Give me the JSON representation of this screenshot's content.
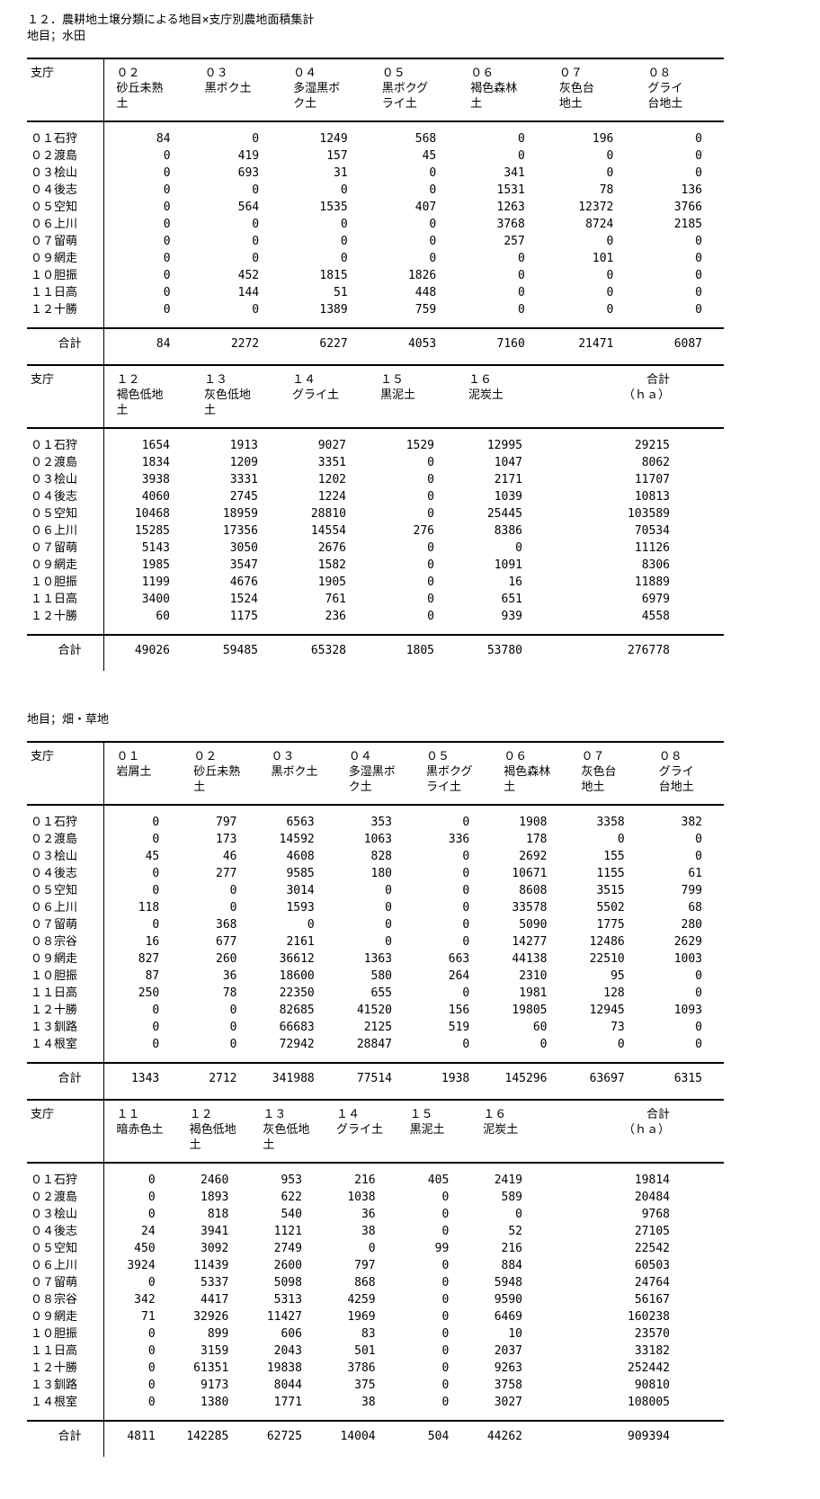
{
  "title": "１２．農耕地土壌分類による地目×支庁別農地面積集計",
  "sections": [
    {
      "label": "地目；水田"
    },
    {
      "label": "地目；畑・草地"
    }
  ],
  "tables": [
    {
      "section": "水田",
      "row_header": "支庁",
      "total_label": "合計",
      "sum_last": false,
      "columns": [
        "０２\n砂丘未熟\n土",
        "０３\n黒ボク土",
        "０４\n多湿黒ボ\nク土",
        "０５\n黒ボクグ\nライ土",
        "０６\n褐色森林\n土",
        "０７\n灰色台\n地土",
        "０８\nグライ\n台地土"
      ],
      "rows": [
        {
          "label": "０１石狩",
          "values": [
            "84",
            "0",
            "1249",
            "568",
            "0",
            "196",
            "0"
          ]
        },
        {
          "label": "０２渡島",
          "values": [
            "0",
            "419",
            "157",
            "45",
            "0",
            "0",
            "0"
          ]
        },
        {
          "label": "０３桧山",
          "values": [
            "0",
            "693",
            "31",
            "0",
            "341",
            "0",
            "0"
          ]
        },
        {
          "label": "０４後志",
          "values": [
            "0",
            "0",
            "0",
            "0",
            "1531",
            "78",
            "136"
          ]
        },
        {
          "label": "０５空知",
          "values": [
            "0",
            "564",
            "1535",
            "407",
            "1263",
            "12372",
            "3766"
          ]
        },
        {
          "label": "０６上川",
          "values": [
            "0",
            "0",
            "0",
            "0",
            "3768",
            "8724",
            "2185"
          ]
        },
        {
          "label": "０７留萌",
          "values": [
            "0",
            "0",
            "0",
            "0",
            "257",
            "0",
            "0"
          ]
        },
        {
          "label": "０９網走",
          "values": [
            "0",
            "0",
            "0",
            "0",
            "0",
            "101",
            "0"
          ]
        },
        {
          "label": "１０胆振",
          "values": [
            "0",
            "452",
            "1815",
            "1826",
            "0",
            "0",
            "0"
          ]
        },
        {
          "label": "１１日高",
          "values": [
            "0",
            "144",
            "51",
            "448",
            "0",
            "0",
            "0"
          ]
        },
        {
          "label": "１２十勝",
          "values": [
            "0",
            "0",
            "1389",
            "759",
            "0",
            "0",
            "0"
          ]
        }
      ],
      "totals": [
        "84",
        "2272",
        "6227",
        "4053",
        "7160",
        "21471",
        "6087"
      ]
    },
    {
      "section": "水田",
      "row_header": "支庁",
      "total_label": "合計",
      "sum_last": true,
      "columns": [
        "１２\n褐色低地\n土",
        "１３\n灰色低地\n土",
        "１４\nグライ土",
        "１５\n黒泥土",
        "１６\n泥炭土",
        "合計\n（ｈａ）"
      ],
      "rows": [
        {
          "label": "０１石狩",
          "values": [
            "1654",
            "1913",
            "9027",
            "1529",
            "12995",
            "29215"
          ]
        },
        {
          "label": "０２渡島",
          "values": [
            "1834",
            "1209",
            "3351",
            "0",
            "1047",
            "8062"
          ]
        },
        {
          "label": "０３桧山",
          "values": [
            "3938",
            "3331",
            "1202",
            "0",
            "2171",
            "11707"
          ]
        },
        {
          "label": "０４後志",
          "values": [
            "4060",
            "2745",
            "1224",
            "0",
            "1039",
            "10813"
          ]
        },
        {
          "label": "０５空知",
          "values": [
            "10468",
            "18959",
            "28810",
            "0",
            "25445",
            "103589"
          ]
        },
        {
          "label": "０６上川",
          "values": [
            "15285",
            "17356",
            "14554",
            "276",
            "8386",
            "70534"
          ]
        },
        {
          "label": "０７留萌",
          "values": [
            "5143",
            "3050",
            "2676",
            "0",
            "0",
            "11126"
          ]
        },
        {
          "label": "０９網走",
          "values": [
            "1985",
            "3547",
            "1582",
            "0",
            "1091",
            "8306"
          ]
        },
        {
          "label": "１０胆振",
          "values": [
            "1199",
            "4676",
            "1905",
            "0",
            "16",
            "11889"
          ]
        },
        {
          "label": "１１日高",
          "values": [
            "3400",
            "1524",
            "761",
            "0",
            "651",
            "6979"
          ]
        },
        {
          "label": "１２十勝",
          "values": [
            "60",
            "1175",
            "236",
            "0",
            "939",
            "4558"
          ]
        }
      ],
      "totals": [
        "49026",
        "59485",
        "65328",
        "1805",
        "53780",
        "276778"
      ]
    },
    {
      "section": "畑・草地",
      "row_header": "支庁",
      "total_label": "合計",
      "sum_last": false,
      "columns": [
        "０１\n岩屑土",
        "０２\n砂丘未熟\n土",
        "０３\n黒ボク土",
        "０４\n多湿黒ボ\nク土",
        "０５\n黒ボクグ\nライ土",
        "０６\n褐色森林\n土",
        "０７\n灰色台\n地土",
        "０８\nグライ\n台地土"
      ],
      "rows": [
        {
          "label": "０１石狩",
          "values": [
            "0",
            "797",
            "6563",
            "353",
            "0",
            "1908",
            "3358",
            "382"
          ]
        },
        {
          "label": "０２渡島",
          "values": [
            "0",
            "173",
            "14592",
            "1063",
            "336",
            "178",
            "0",
            "0"
          ]
        },
        {
          "label": "０３桧山",
          "values": [
            "45",
            "46",
            "4608",
            "828",
            "0",
            "2692",
            "155",
            "0"
          ]
        },
        {
          "label": "０４後志",
          "values": [
            "0",
            "277",
            "9585",
            "180",
            "0",
            "10671",
            "1155",
            "61"
          ]
        },
        {
          "label": "０５空知",
          "values": [
            "0",
            "0",
            "3014",
            "0",
            "0",
            "8608",
            "3515",
            "799"
          ]
        },
        {
          "label": "０６上川",
          "values": [
            "118",
            "0",
            "1593",
            "0",
            "0",
            "33578",
            "5502",
            "68"
          ]
        },
        {
          "label": "０７留萌",
          "values": [
            "0",
            "368",
            "0",
            "0",
            "0",
            "5090",
            "1775",
            "280"
          ]
        },
        {
          "label": "０８宗谷",
          "values": [
            "16",
            "677",
            "2161",
            "0",
            "0",
            "14277",
            "12486",
            "2629"
          ]
        },
        {
          "label": "０９網走",
          "values": [
            "827",
            "260",
            "36612",
            "1363",
            "663",
            "44138",
            "22510",
            "1003"
          ]
        },
        {
          "label": "１０胆振",
          "values": [
            "87",
            "36",
            "18600",
            "580",
            "264",
            "2310",
            "95",
            "0"
          ]
        },
        {
          "label": "１１日高",
          "values": [
            "250",
            "78",
            "22350",
            "655",
            "0",
            "1981",
            "128",
            "0"
          ]
        },
        {
          "label": "１２十勝",
          "values": [
            "0",
            "0",
            "82685",
            "41520",
            "156",
            "19805",
            "12945",
            "1093"
          ]
        },
        {
          "label": "１３釧路",
          "values": [
            "0",
            "0",
            "66683",
            "2125",
            "519",
            "60",
            "73",
            "0"
          ]
        },
        {
          "label": "１４根室",
          "values": [
            "0",
            "0",
            "72942",
            "28847",
            "0",
            "0",
            "0",
            "0"
          ]
        }
      ],
      "totals": [
        "1343",
        "2712",
        "341988",
        "77514",
        "1938",
        "145296",
        "63697",
        "6315"
      ]
    },
    {
      "section": "畑・草地",
      "row_header": "支庁",
      "total_label": "合計",
      "sum_last": true,
      "columns": [
        "１１\n暗赤色土",
        "１２\n褐色低地\n土",
        "１３\n灰色低地\n土",
        "１４\nグライ土",
        "１５\n黒泥土",
        "１６\n泥炭土",
        "合計\n（ｈａ）"
      ],
      "rows": [
        {
          "label": "０１石狩",
          "values": [
            "0",
            "2460",
            "953",
            "216",
            "405",
            "2419",
            "19814"
          ]
        },
        {
          "label": "０２渡島",
          "values": [
            "0",
            "1893",
            "622",
            "1038",
            "0",
            "589",
            "20484"
          ]
        },
        {
          "label": "０３桧山",
          "values": [
            "0",
            "818",
            "540",
            "36",
            "0",
            "0",
            "9768"
          ]
        },
        {
          "label": "０４後志",
          "values": [
            "24",
            "3941",
            "1121",
            "38",
            "0",
            "52",
            "27105"
          ]
        },
        {
          "label": "０５空知",
          "values": [
            "450",
            "3092",
            "2749",
            "0",
            "99",
            "216",
            "22542"
          ]
        },
        {
          "label": "０６上川",
          "values": [
            "3924",
            "11439",
            "2600",
            "797",
            "0",
            "884",
            "60503"
          ]
        },
        {
          "label": "０７留萌",
          "values": [
            "0",
            "5337",
            "5098",
            "868",
            "0",
            "5948",
            "24764"
          ]
        },
        {
          "label": "０８宗谷",
          "values": [
            "342",
            "4417",
            "5313",
            "4259",
            "0",
            "9590",
            "56167"
          ]
        },
        {
          "label": "０９網走",
          "values": [
            "71",
            "32926",
            "11427",
            "1969",
            "0",
            "6469",
            "160238"
          ]
        },
        {
          "label": "１０胆振",
          "values": [
            "0",
            "899",
            "606",
            "83",
            "0",
            "10",
            "23570"
          ]
        },
        {
          "label": "１１日高",
          "values": [
            "0",
            "3159",
            "2043",
            "501",
            "0",
            "2037",
            "33182"
          ]
        },
        {
          "label": "１２十勝",
          "values": [
            "0",
            "61351",
            "19838",
            "3786",
            "0",
            "9263",
            "252442"
          ]
        },
        {
          "label": "１３釧路",
          "values": [
            "0",
            "9173",
            "8044",
            "375",
            "0",
            "3758",
            "90810"
          ]
        },
        {
          "label": "１４根室",
          "values": [
            "0",
            "1380",
            "1771",
            "38",
            "0",
            "3027",
            "108005"
          ]
        }
      ],
      "totals": [
        "4811",
        "142285",
        "62725",
        "14004",
        "504",
        "44262",
        "909394"
      ]
    }
  ]
}
